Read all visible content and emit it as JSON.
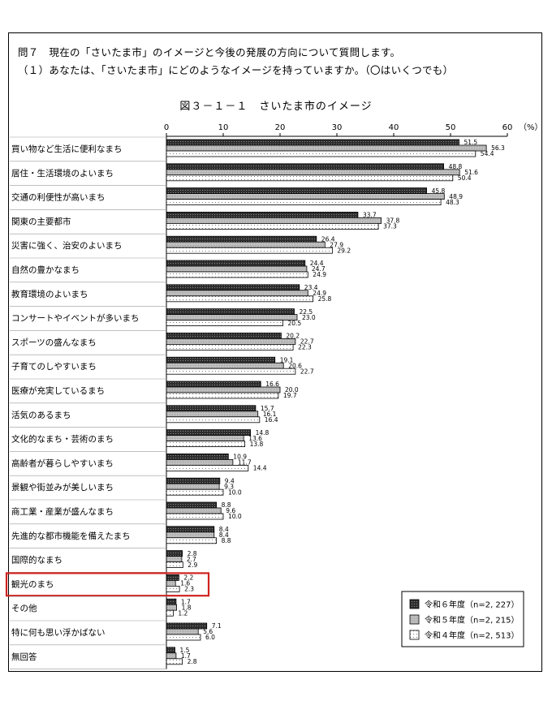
{
  "question": {
    "line1": "問７　現在の「さいたま市」のイメージと今後の発展の方向について質問します。",
    "line2": "（１）あなたは、「さいたま市」にどのようなイメージを持っていますか。（〇はいくつでも）"
  },
  "colors": {
    "highlight": "#d0231e",
    "series_6": "#3a3a3a",
    "series_5": "#b8b8b8",
    "series_4": "#ffffff"
  },
  "chart_data": {
    "type": "bar",
    "orientation": "horizontal",
    "title": "図３－１－１　さいたま市のイメージ",
    "unit_label": "（%）",
    "xlim": [
      0,
      60
    ],
    "x_ticks": [
      0,
      10,
      20,
      30,
      40,
      50,
      60
    ],
    "grid": false,
    "legend_position": "bottom-right",
    "highlighted_category": "観光のまち",
    "categories": [
      "買い物など生活に便利なまち",
      "居住・生活環境のよいまち",
      "交通の利便性が高いまち",
      "関東の主要都市",
      "災害に強く、治安のよいまち",
      "自然の豊かなまち",
      "教育環境のよいまち",
      "コンサートやイベントが多いまち",
      "スポーツの盛んなまち",
      "子育てのしやすいまち",
      "医療が充実しているまち",
      "活気のあるまち",
      "文化的なまち・芸術のまち",
      "高齢者が暮らしやすいまち",
      "景観や街並みが美しいまち",
      "商工業・産業が盛んなまち",
      "先進的な都市機能を備えたまち",
      "国際的なまち",
      "観光のまち",
      "その他",
      "特に何も思い浮かばない",
      "無回答"
    ],
    "series": [
      {
        "name": "令和６年度（n=2, 227）",
        "pattern": "dark",
        "values": [
          51.5,
          48.8,
          45.8,
          33.7,
          26.4,
          24.4,
          23.4,
          22.5,
          20.2,
          19.1,
          16.6,
          15.7,
          14.8,
          10.9,
          9.4,
          8.8,
          8.4,
          2.8,
          2.2,
          1.7,
          7.1,
          1.5
        ]
      },
      {
        "name": "令和５年度（n=2, 215）",
        "pattern": "gray",
        "values": [
          56.3,
          51.6,
          48.9,
          37.8,
          27.9,
          24.7,
          24.9,
          23.0,
          22.7,
          20.6,
          20.0,
          16.1,
          13.6,
          11.7,
          9.3,
          9.6,
          8.4,
          2.7,
          1.6,
          1.8,
          5.6,
          1.7
        ]
      },
      {
        "name": "令和４年度（n=2, 513）",
        "pattern": "dotted",
        "values": [
          54.4,
          50.4,
          48.3,
          37.3,
          29.2,
          24.9,
          25.8,
          20.5,
          22.3,
          22.7,
          19.7,
          16.4,
          13.8,
          14.4,
          10.0,
          10.0,
          8.8,
          2.9,
          2.3,
          1.2,
          6.0,
          2.8
        ]
      }
    ]
  }
}
